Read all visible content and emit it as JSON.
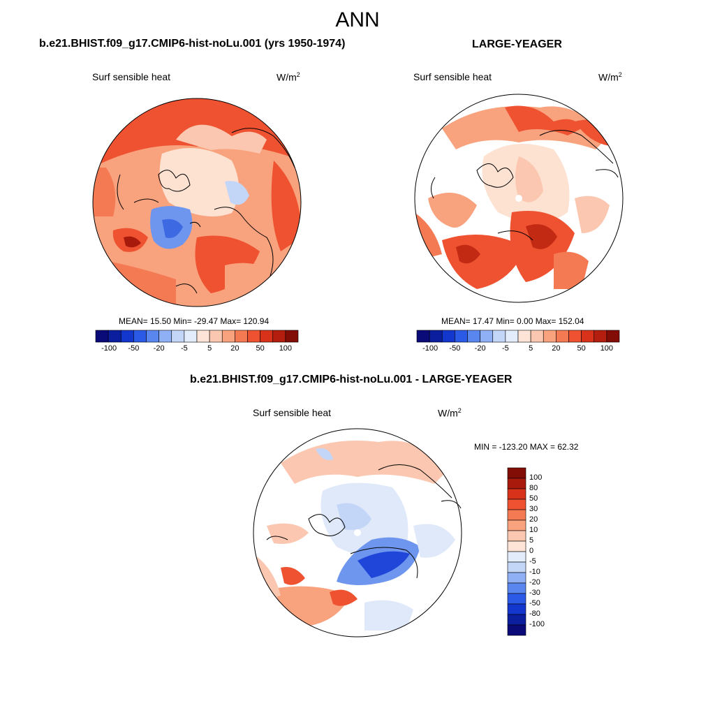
{
  "figure": {
    "title": "ANN",
    "diff_title": "b.e21.BHIST.f09_g17.CMIP6-hist-noLu.001 - LARGE-YEAGER"
  },
  "panels": [
    {
      "title": "b.e21.BHIST.f09_g17.CMIP6-hist-noLu.001 (yrs 1950-1974)",
      "variable": "Surf sensible heat",
      "units_base": "W/m",
      "units_exp": "2",
      "stats": {
        "mean": "15.50",
        "min": "-29.47",
        "max": "120.94"
      },
      "stats_text": "MEAN=  15.50  Min= -29.47  Max= 120.94"
    },
    {
      "title": "LARGE-YEAGER",
      "variable": "Surf sensible heat",
      "units_base": "W/m",
      "units_exp": "2",
      "stats": {
        "mean": "17.47",
        "min": "0.00",
        "max": "152.04"
      },
      "stats_text": "MEAN=  17.47  Min=   0.00  Max= 152.04"
    },
    {
      "title": "b.e21.BHIST.f09_g17.CMIP6-hist-noLu.001 - LARGE-YEAGER",
      "variable": "Surf sensible heat",
      "units_base": "W/m",
      "units_exp": "2",
      "stats": {
        "min": "-123.20",
        "max": "62.32"
      },
      "stats_text": "MIN = -123.20 MAX =  62.32"
    }
  ],
  "colorbar_h": {
    "tick_labels": [
      "-100",
      "-50",
      "-20",
      "-5",
      "5",
      "20",
      "50",
      "100"
    ],
    "colors": [
      "#0a0a78",
      "#0b1e9e",
      "#1336cc",
      "#2a5ae6",
      "#5a86f0",
      "#8fb0f5",
      "#c4d6f7",
      "#e2ecfa",
      "#fde4d6",
      "#fbc7b0",
      "#f8a27e",
      "#f47a54",
      "#ee5230",
      "#d8331a",
      "#b31e0e",
      "#820c06"
    ]
  },
  "colorbar_v": {
    "tick_labels": [
      "100",
      "80",
      "50",
      "30",
      "20",
      "10",
      "5",
      "0",
      "-5",
      "-10",
      "-20",
      "-30",
      "-50",
      "-80",
      "-100"
    ],
    "colors": [
      "#820c06",
      "#a81a0c",
      "#d8331a",
      "#ee5230",
      "#f47a54",
      "#f8a27e",
      "#fbc7b0",
      "#fde4d6",
      "#e2ecfa",
      "#c4d6f7",
      "#8fb0f5",
      "#5a86f0",
      "#2a5ae6",
      "#1336cc",
      "#0b1e9e",
      "#0a0a78"
    ]
  },
  "map_palette": {
    "land_light": "#fde2d2",
    "land_mid": "#f8a27e",
    "land_warm": "#f47a54",
    "land_hot": "#ee5230",
    "land_dark": "#c22a14",
    "blue_light": "#c4d6f7",
    "blue_mid": "#6f96ee",
    "blue_dark": "#1f46d8",
    "ocean_white": "#ffffff"
  }
}
